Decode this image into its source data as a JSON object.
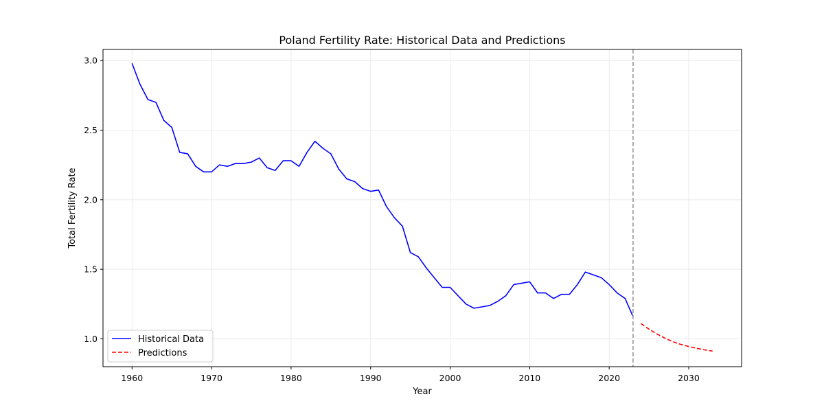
{
  "chart_data": {
    "type": "line",
    "title": "Poland Fertility Rate: Historical Data and Predictions",
    "xlabel": "Year",
    "ylabel": "Total Fertility Rate",
    "xlim": [
      1956.35,
      2036.65
    ],
    "ylim": [
      0.8,
      3.08
    ],
    "x_ticks": [
      1960,
      1970,
      1980,
      1990,
      2000,
      2010,
      2020,
      2030
    ],
    "y_ticks": [
      1.0,
      1.5,
      2.0,
      2.5,
      3.0
    ],
    "x_tick_labels": [
      "1960",
      "1970",
      "1980",
      "1990",
      "2000",
      "2010",
      "2020",
      "2030"
    ],
    "y_tick_labels": [
      "1.0",
      "1.5",
      "2.0",
      "2.5",
      "3.0"
    ],
    "grid": true,
    "legend_position": "lower-left",
    "vertical_line": {
      "x": 2023,
      "style": "dashed",
      "color": "#999999"
    },
    "series": [
      {
        "name": "Historical Data",
        "color": "#0000ff",
        "style": "solid",
        "x": [
          1960,
          1961,
          1962,
          1963,
          1964,
          1965,
          1966,
          1967,
          1968,
          1969,
          1970,
          1971,
          1972,
          1973,
          1974,
          1975,
          1976,
          1977,
          1978,
          1979,
          1980,
          1981,
          1982,
          1983,
          1984,
          1985,
          1986,
          1987,
          1988,
          1989,
          1990,
          1991,
          1992,
          1993,
          1994,
          1995,
          1996,
          1997,
          1998,
          1999,
          2000,
          2001,
          2002,
          2003,
          2004,
          2005,
          2006,
          2007,
          2008,
          2009,
          2010,
          2011,
          2012,
          2013,
          2014,
          2015,
          2016,
          2017,
          2018,
          2019,
          2020,
          2021,
          2022,
          2023
        ],
        "values": [
          2.98,
          2.83,
          2.72,
          2.7,
          2.57,
          2.52,
          2.34,
          2.33,
          2.24,
          2.2,
          2.2,
          2.25,
          2.24,
          2.26,
          2.26,
          2.27,
          2.3,
          2.23,
          2.21,
          2.28,
          2.28,
          2.24,
          2.34,
          2.42,
          2.37,
          2.33,
          2.22,
          2.15,
          2.13,
          2.08,
          2.06,
          2.07,
          1.95,
          1.87,
          1.81,
          1.62,
          1.59,
          1.51,
          1.44,
          1.37,
          1.37,
          1.31,
          1.25,
          1.22,
          1.23,
          1.24,
          1.27,
          1.31,
          1.39,
          1.4,
          1.41,
          1.33,
          1.33,
          1.29,
          1.32,
          1.32,
          1.39,
          1.48,
          1.46,
          1.44,
          1.39,
          1.33,
          1.29,
          1.16
        ]
      },
      {
        "name": "Predictions",
        "color": "#ff0000",
        "style": "dashed",
        "x": [
          2024,
          2025,
          2026,
          2027,
          2028,
          2029,
          2030,
          2031,
          2032,
          2033
        ],
        "values": [
          1.11,
          1.07,
          1.035,
          1.005,
          0.98,
          0.96,
          0.945,
          0.932,
          0.921,
          0.912
        ]
      }
    ]
  }
}
